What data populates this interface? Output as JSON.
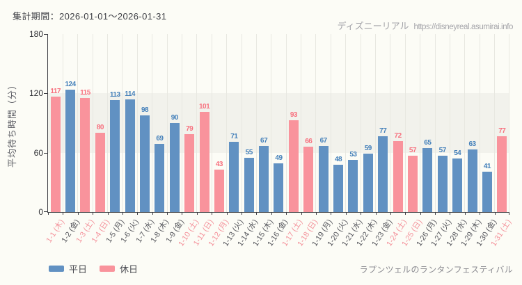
{
  "header": {
    "period_label": "集計期間：2026-01-01～2026-01-31"
  },
  "watermark": {
    "site_name": "ディズニーリアル",
    "site_url": "https://disneyreal.asumirai.info"
  },
  "footer": {
    "attraction": "ラプンツェルのランタンフェスティバル"
  },
  "legend": [
    {
      "key": "weekday",
      "label": "平日",
      "color": "#6191c2"
    },
    {
      "key": "holiday",
      "label": "休日",
      "color": "#f9939c"
    }
  ],
  "chart_data": {
    "type": "bar",
    "title": "",
    "xlabel": "",
    "ylabel": "平均待ち時間（分）",
    "ylim": [
      0,
      180
    ],
    "yticks": [
      0,
      60,
      120,
      180
    ],
    "grid": "vertical",
    "legend_position": "bottom-left",
    "band": {
      "from": 60,
      "to": 120,
      "color": "#f2f2ec"
    },
    "categories": [
      "1-1 (木)",
      "1-2 (金)",
      "1-3 (土)",
      "1-4 (日)",
      "1-5 (月)",
      "1-6 (火)",
      "1-7 (水)",
      "1-8 (木)",
      "1-9 (金)",
      "1-10 (土)",
      "1-11 (日)",
      "1-12 (月)",
      "1-13 (火)",
      "1-14 (水)",
      "1-15 (木)",
      "1-16 (金)",
      "1-17 (土)",
      "1-18 (日)",
      "1-19 (月)",
      "1-20 (火)",
      "1-21 (水)",
      "1-22 (木)",
      "1-23 (金)",
      "1-24 (土)",
      "1-25 (日)",
      "1-26 (月)",
      "1-27 (火)",
      "1-28 (水)",
      "1-29 (木)",
      "1-30 (金)",
      "1-31 (土)"
    ],
    "values": [
      117,
      124,
      115,
      80,
      113,
      114,
      98,
      69,
      90,
      79,
      101,
      43,
      71,
      55,
      67,
      49,
      93,
      66,
      67,
      48,
      53,
      59,
      77,
      72,
      57,
      65,
      57,
      54,
      63,
      41,
      77
    ],
    "day_types": [
      "holiday",
      "weekday",
      "holiday",
      "holiday",
      "weekday",
      "weekday",
      "weekday",
      "weekday",
      "weekday",
      "holiday",
      "holiday",
      "holiday",
      "weekday",
      "weekday",
      "weekday",
      "weekday",
      "holiday",
      "holiday",
      "weekday",
      "weekday",
      "weekday",
      "weekday",
      "weekday",
      "holiday",
      "holiday",
      "weekday",
      "weekday",
      "weekday",
      "weekday",
      "weekday",
      "holiday"
    ],
    "colors": {
      "weekday_bar": "#6191c2",
      "holiday_bar": "#f9939c",
      "weekday_value": "#4480ba",
      "holiday_value": "#f7707e",
      "weekday_tick": "#55565c",
      "holiday_tick": "#f4929b"
    }
  }
}
